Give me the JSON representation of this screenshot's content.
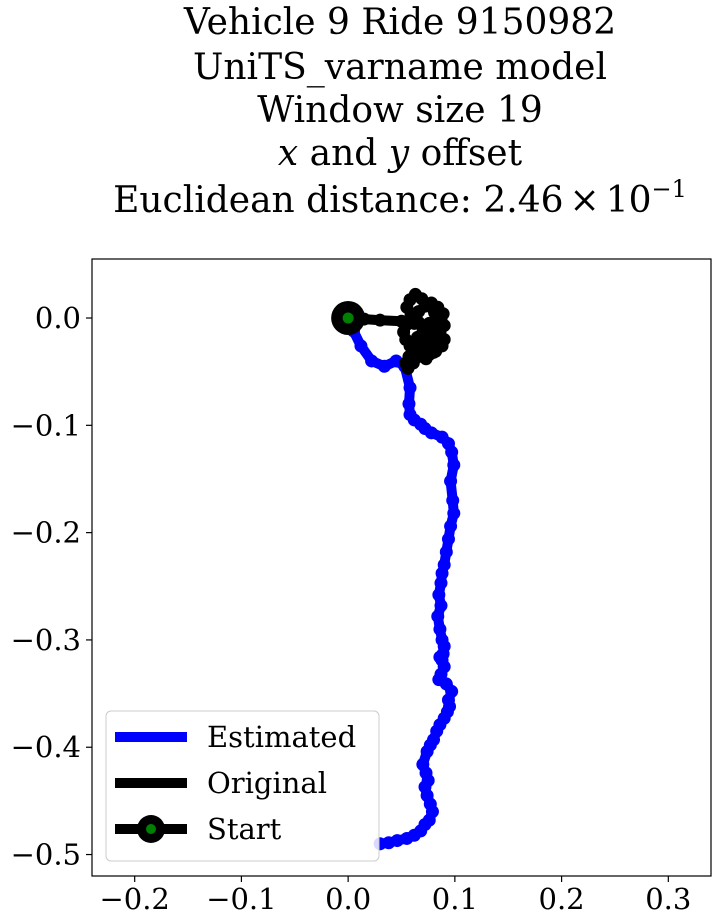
{
  "chart_data": {
    "type": "line",
    "title_lines": [
      "Vehicle 9 Ride 9150982",
      "UniTS_varname model",
      "Window size 19",
      "x and y offset",
      "Euclidean distance: 2.46 × 10⁻¹"
    ],
    "title_parts": {
      "var_x": "x",
      "conj": " and ",
      "var_y": "y",
      "offset_word": " offset",
      "distance_prefix": "Euclidean distance: ",
      "distance_mantissa": "2.46",
      "times": "×",
      "distance_base": "10",
      "distance_exponent": "−1"
    },
    "xlabel": "",
    "ylabel": "",
    "xlim": [
      -0.24,
      0.34
    ],
    "ylim": [
      -0.52,
      0.055
    ],
    "x_ticks": [
      -0.2,
      -0.1,
      0.0,
      0.1,
      0.2,
      0.3
    ],
    "x_tick_labels": [
      "−0.2",
      "−0.1",
      "0.0",
      "0.1",
      "0.2",
      "0.3"
    ],
    "y_ticks": [
      0.0,
      -0.1,
      -0.2,
      -0.3,
      -0.4,
      -0.5
    ],
    "y_tick_labels": [
      "0.0",
      "−0.1",
      "−0.2",
      "−0.3",
      "−0.4",
      "−0.5"
    ],
    "grid": false,
    "legend_position": "lower-left",
    "series": [
      {
        "name": "Estimated",
        "color": "#0000ff",
        "x": [
          0.0,
          0.005,
          0.012,
          0.022,
          0.034,
          0.045,
          0.053,
          0.058,
          0.057,
          0.058,
          0.062,
          0.068,
          0.072,
          0.078,
          0.088,
          0.094,
          0.097,
          0.099,
          0.096,
          0.098,
          0.099,
          0.096,
          0.094,
          0.092,
          0.09,
          0.088,
          0.087,
          0.085,
          0.087,
          0.084,
          0.086,
          0.088,
          0.09,
          0.089,
          0.086,
          0.088,
          0.09,
          0.087,
          0.085,
          0.092,
          0.097,
          0.094,
          0.095,
          0.093,
          0.09,
          0.086,
          0.083,
          0.08,
          0.077,
          0.074,
          0.07,
          0.073,
          0.075,
          0.072,
          0.074,
          0.077,
          0.079,
          0.076,
          0.072,
          0.068,
          0.062,
          0.055,
          0.046,
          0.038,
          0.03
        ],
        "y": [
          0.0,
          -0.012,
          -0.026,
          -0.04,
          -0.045,
          -0.04,
          -0.045,
          -0.065,
          -0.08,
          -0.09,
          -0.095,
          -0.099,
          -0.103,
          -0.107,
          -0.111,
          -0.117,
          -0.125,
          -0.137,
          -0.152,
          -0.17,
          -0.182,
          -0.194,
          -0.206,
          -0.218,
          -0.23,
          -0.238,
          -0.247,
          -0.258,
          -0.268,
          -0.278,
          -0.29,
          -0.3,
          -0.306,
          -0.313,
          -0.316,
          -0.319,
          -0.325,
          -0.332,
          -0.337,
          -0.341,
          -0.348,
          -0.356,
          -0.362,
          -0.367,
          -0.373,
          -0.379,
          -0.385,
          -0.393,
          -0.398,
          -0.404,
          -0.416,
          -0.424,
          -0.431,
          -0.437,
          -0.445,
          -0.453,
          -0.46,
          -0.468,
          -0.472,
          -0.478,
          -0.482,
          -0.485,
          -0.487,
          -0.489,
          -0.49
        ]
      },
      {
        "name": "Original",
        "color": "#000000",
        "x": [
          0.0,
          0.015,
          0.03,
          0.05,
          0.062,
          0.07,
          0.078,
          0.084,
          0.09,
          0.088,
          0.082,
          0.076,
          0.07,
          0.064,
          0.058,
          0.054,
          0.052,
          0.055,
          0.06,
          0.066,
          0.072,
          0.078,
          0.084,
          0.089,
          0.086,
          0.08,
          0.074,
          0.068,
          0.062,
          0.057,
          0.054,
          0.056,
          0.061,
          0.067,
          0.074,
          0.08,
          0.086,
          0.09,
          0.087,
          0.081,
          0.075,
          0.069,
          0.063,
          0.058,
          0.055,
          0.059,
          0.066,
          0.073,
          0.079,
          0.084,
          0.08,
          0.073,
          0.066,
          0.06,
          0.065,
          0.071,
          0.076
        ],
        "y": [
          0.0,
          -0.001,
          -0.002,
          -0.003,
          -0.005,
          -0.008,
          -0.012,
          -0.016,
          -0.02,
          -0.026,
          -0.031,
          -0.034,
          -0.036,
          -0.032,
          -0.026,
          -0.02,
          -0.013,
          -0.006,
          0.0,
          0.006,
          0.011,
          0.014,
          0.01,
          0.004,
          -0.003,
          -0.01,
          -0.017,
          -0.024,
          -0.03,
          -0.036,
          -0.042,
          -0.047,
          -0.042,
          -0.035,
          -0.028,
          -0.021,
          -0.014,
          -0.007,
          -0.001,
          0.005,
          0.012,
          0.018,
          0.022,
          0.017,
          0.01,
          0.003,
          -0.004,
          -0.011,
          -0.018,
          -0.025,
          -0.032,
          -0.038,
          -0.033,
          -0.025,
          -0.018,
          -0.011,
          -0.005
        ]
      }
    ],
    "start_point": {
      "name": "Start",
      "x": 0.0,
      "y": 0.0,
      "outer_color": "#000000",
      "inner_color": "#008000"
    }
  }
}
